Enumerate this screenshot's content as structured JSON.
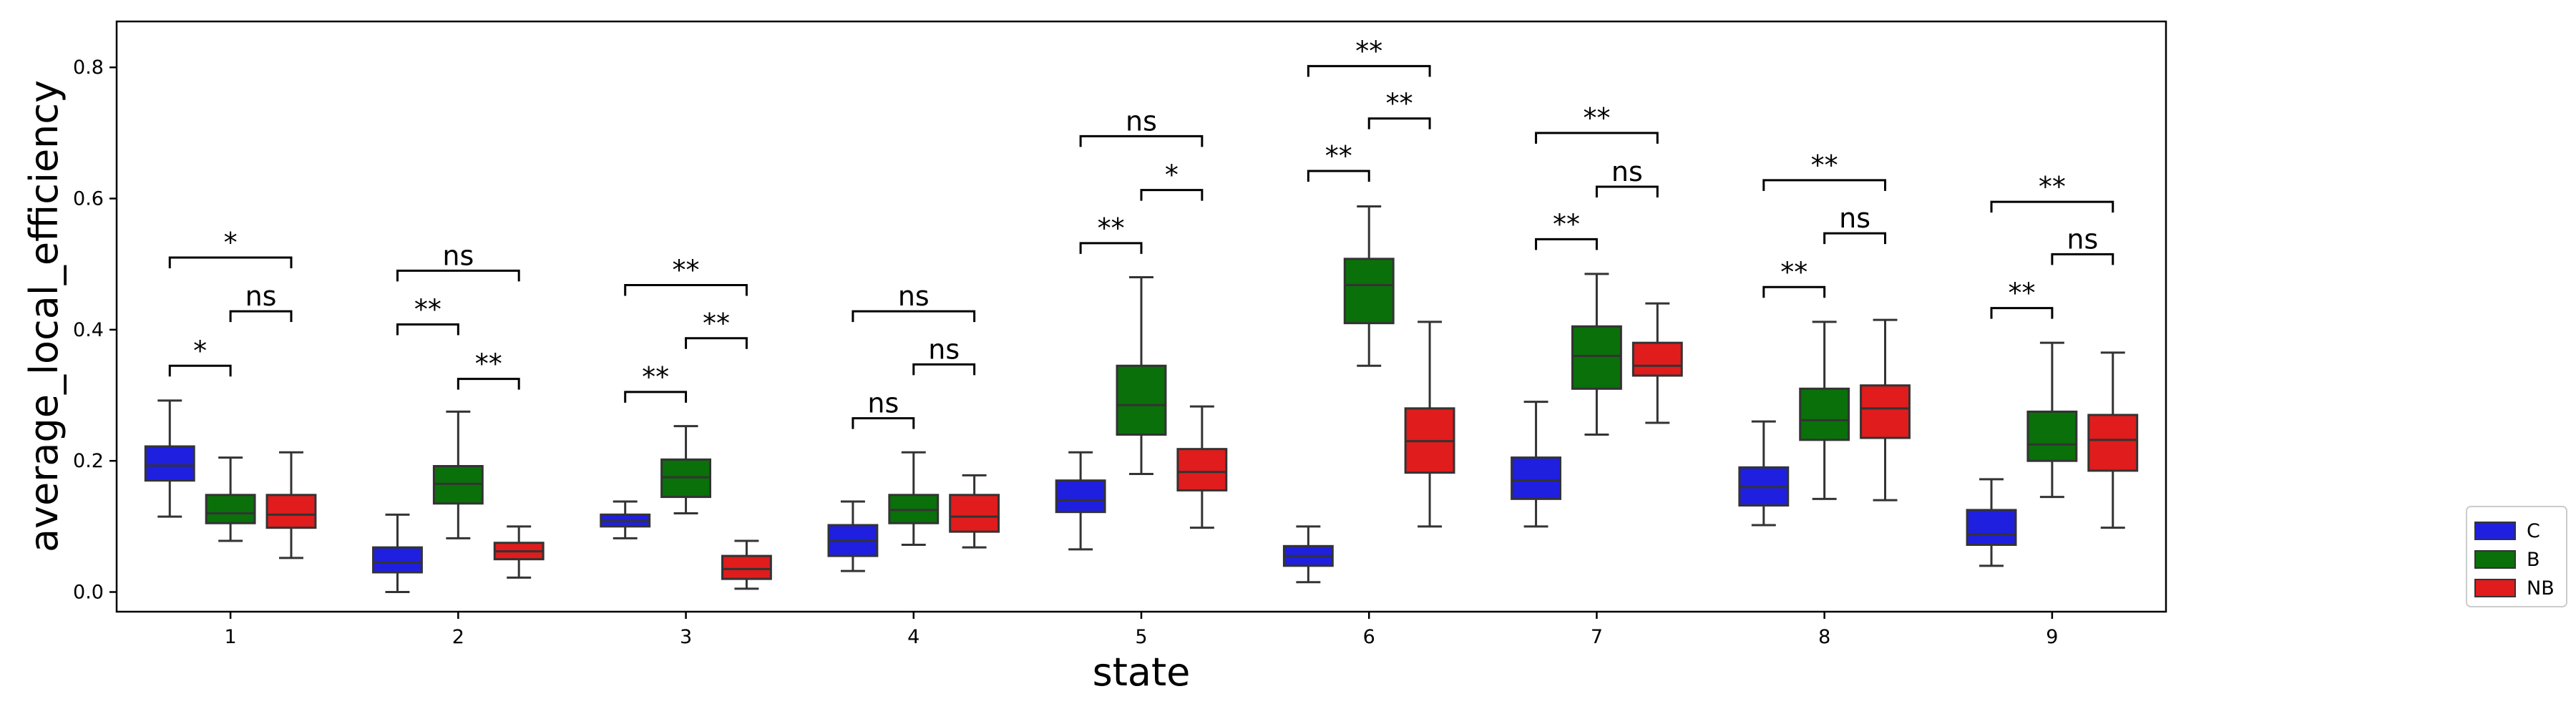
{
  "chart_data": {
    "type": "boxplot",
    "title": "",
    "xlabel": "state",
    "ylabel": "average_local_efficiency",
    "ylim": [
      -0.03,
      0.87
    ],
    "yticks": [
      "0.0",
      "0.2",
      "0.4",
      "0.6",
      "0.8"
    ],
    "categories": [
      "1",
      "2",
      "3",
      "4",
      "5",
      "6",
      "7",
      "8",
      "9"
    ],
    "grid": false,
    "legend_position": "right",
    "series": [
      {
        "name": "C",
        "color": "#1f1fe0",
        "boxes": [
          {
            "whislo": 0.115,
            "q1": 0.17,
            "med": 0.193,
            "q3": 0.222,
            "whishi": 0.292
          },
          {
            "whislo": 0.0,
            "q1": 0.03,
            "med": 0.045,
            "q3": 0.068,
            "whishi": 0.118
          },
          {
            "whislo": 0.082,
            "q1": 0.1,
            "med": 0.108,
            "q3": 0.118,
            "whishi": 0.138
          },
          {
            "whislo": 0.032,
            "q1": 0.055,
            "med": 0.078,
            "q3": 0.102,
            "whishi": 0.138
          },
          {
            "whislo": 0.065,
            "q1": 0.122,
            "med": 0.14,
            "q3": 0.17,
            "whishi": 0.213
          },
          {
            "whislo": 0.015,
            "q1": 0.04,
            "med": 0.055,
            "q3": 0.07,
            "whishi": 0.1
          },
          {
            "whislo": 0.1,
            "q1": 0.142,
            "med": 0.17,
            "q3": 0.205,
            "whishi": 0.29
          },
          {
            "whislo": 0.102,
            "q1": 0.132,
            "med": 0.16,
            "q3": 0.19,
            "whishi": 0.26
          },
          {
            "whislo": 0.04,
            "q1": 0.072,
            "med": 0.088,
            "q3": 0.125,
            "whishi": 0.172
          }
        ]
      },
      {
        "name": "B",
        "color": "#0a700a",
        "boxes": [
          {
            "whislo": 0.078,
            "q1": 0.105,
            "med": 0.12,
            "q3": 0.148,
            "whishi": 0.205
          },
          {
            "whislo": 0.082,
            "q1": 0.135,
            "med": 0.165,
            "q3": 0.192,
            "whishi": 0.275
          },
          {
            "whislo": 0.12,
            "q1": 0.145,
            "med": 0.175,
            "q3": 0.202,
            "whishi": 0.253
          },
          {
            "whislo": 0.072,
            "q1": 0.105,
            "med": 0.125,
            "q3": 0.148,
            "whishi": 0.213
          },
          {
            "whislo": 0.18,
            "q1": 0.24,
            "med": 0.285,
            "q3": 0.345,
            "whishi": 0.48
          },
          {
            "whislo": 0.345,
            "q1": 0.41,
            "med": 0.468,
            "q3": 0.508,
            "whishi": 0.588
          },
          {
            "whislo": 0.24,
            "q1": 0.31,
            "med": 0.36,
            "q3": 0.405,
            "whishi": 0.485
          },
          {
            "whislo": 0.142,
            "q1": 0.232,
            "med": 0.262,
            "q3": 0.31,
            "whishi": 0.412
          },
          {
            "whislo": 0.145,
            "q1": 0.2,
            "med": 0.225,
            "q3": 0.275,
            "whishi": 0.38
          }
        ]
      },
      {
        "name": "NB",
        "color": "#e01c1c",
        "boxes": [
          {
            "whislo": 0.052,
            "q1": 0.098,
            "med": 0.118,
            "q3": 0.148,
            "whishi": 0.213
          },
          {
            "whislo": 0.022,
            "q1": 0.05,
            "med": 0.062,
            "q3": 0.075,
            "whishi": 0.1
          },
          {
            "whislo": 0.005,
            "q1": 0.02,
            "med": 0.035,
            "q3": 0.055,
            "whishi": 0.078
          },
          {
            "whislo": 0.068,
            "q1": 0.092,
            "med": 0.115,
            "q3": 0.148,
            "whishi": 0.178
          },
          {
            "whislo": 0.098,
            "q1": 0.155,
            "med": 0.183,
            "q3": 0.218,
            "whishi": 0.283
          },
          {
            "whislo": 0.1,
            "q1": 0.182,
            "med": 0.23,
            "q3": 0.28,
            "whishi": 0.412
          },
          {
            "whislo": 0.258,
            "q1": 0.33,
            "med": 0.345,
            "q3": 0.38,
            "whishi": 0.44
          },
          {
            "whislo": 0.14,
            "q1": 0.235,
            "med": 0.28,
            "q3": 0.315,
            "whishi": 0.415
          },
          {
            "whislo": 0.098,
            "q1": 0.185,
            "med": 0.232,
            "q3": 0.27,
            "whishi": 0.365
          }
        ]
      }
    ],
    "annotations": [
      {
        "category": 0,
        "from": 0,
        "to": 1,
        "y": 0.345,
        "label": "*"
      },
      {
        "category": 0,
        "from": 1,
        "to": 2,
        "y": 0.428,
        "label": "ns"
      },
      {
        "category": 0,
        "from": 0,
        "to": 2,
        "y": 0.51,
        "label": "*"
      },
      {
        "category": 1,
        "from": 0,
        "to": 1,
        "y": 0.408,
        "label": "**"
      },
      {
        "category": 1,
        "from": 1,
        "to": 2,
        "y": 0.325,
        "label": "**"
      },
      {
        "category": 1,
        "from": 0,
        "to": 2,
        "y": 0.49,
        "label": "ns"
      },
      {
        "category": 2,
        "from": 0,
        "to": 1,
        "y": 0.305,
        "label": "**"
      },
      {
        "category": 2,
        "from": 1,
        "to": 2,
        "y": 0.387,
        "label": "**"
      },
      {
        "category": 2,
        "from": 0,
        "to": 2,
        "y": 0.468,
        "label": "**"
      },
      {
        "category": 3,
        "from": 0,
        "to": 1,
        "y": 0.265,
        "label": "ns"
      },
      {
        "category": 3,
        "from": 1,
        "to": 2,
        "y": 0.347,
        "label": "ns"
      },
      {
        "category": 3,
        "from": 0,
        "to": 2,
        "y": 0.428,
        "label": "ns"
      },
      {
        "category": 4,
        "from": 0,
        "to": 1,
        "y": 0.532,
        "label": "**"
      },
      {
        "category": 4,
        "from": 1,
        "to": 2,
        "y": 0.613,
        "label": "*"
      },
      {
        "category": 4,
        "from": 0,
        "to": 2,
        "y": 0.695,
        "label": "ns"
      },
      {
        "category": 5,
        "from": 0,
        "to": 1,
        "y": 0.642,
        "label": "**"
      },
      {
        "category": 5,
        "from": 1,
        "to": 2,
        "y": 0.722,
        "label": "**"
      },
      {
        "category": 5,
        "from": 0,
        "to": 2,
        "y": 0.802,
        "label": "**"
      },
      {
        "category": 6,
        "from": 0,
        "to": 1,
        "y": 0.538,
        "label": "**"
      },
      {
        "category": 6,
        "from": 1,
        "to": 2,
        "y": 0.618,
        "label": "ns"
      },
      {
        "category": 6,
        "from": 0,
        "to": 2,
        "y": 0.7,
        "label": "**"
      },
      {
        "category": 7,
        "from": 0,
        "to": 1,
        "y": 0.465,
        "label": "**"
      },
      {
        "category": 7,
        "from": 1,
        "to": 2,
        "y": 0.547,
        "label": "ns"
      },
      {
        "category": 7,
        "from": 0,
        "to": 2,
        "y": 0.628,
        "label": "**"
      },
      {
        "category": 8,
        "from": 0,
        "to": 1,
        "y": 0.433,
        "label": "**"
      },
      {
        "category": 8,
        "from": 1,
        "to": 2,
        "y": 0.515,
        "label": "ns"
      },
      {
        "category": 8,
        "from": 0,
        "to": 2,
        "y": 0.595,
        "label": "**"
      }
    ]
  }
}
